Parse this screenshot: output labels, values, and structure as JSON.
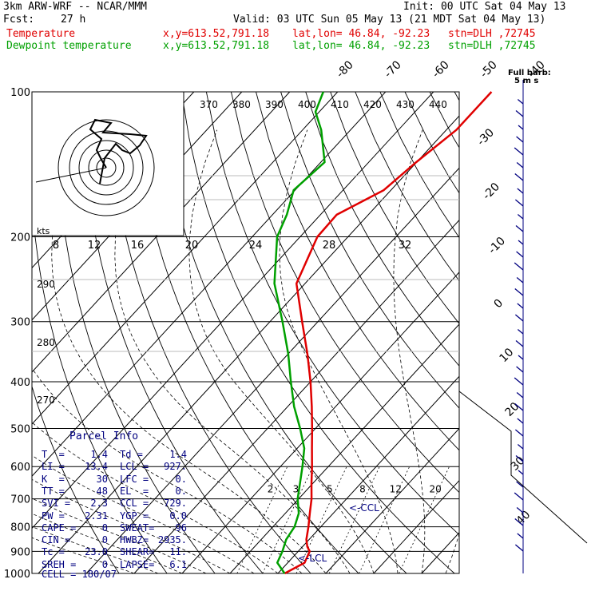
{
  "header": {
    "model": "3km ARW-WRF -- NCAR/MMM",
    "init": "Init: 00 UTC Sat 04 May 13",
    "fcst_label": "Fcst:",
    "fcst_hours": "27 h",
    "valid": "Valid: 03 UTC Sun 05 May 13 (21 MDT Sat 04 May 13)",
    "temp_line": {
      "name": "Temperature",
      "xy": "x,y=613.52,791.18",
      "latlon": "lat,lon= 46.84, -92.23",
      "stn": "stn=DLH ,72745"
    },
    "dew_line": {
      "name": "Dewpoint temperature",
      "xy": "x,y=613.52,791.18",
      "latlon": "lat,lon= 46.84, -92.23",
      "stn": "stn=DLH ,72745"
    }
  },
  "barb_legend": {
    "line1": "Full barb:",
    "line2": "5 m s"
  },
  "hodo_kts_label": "kts",
  "parcel": {
    "title": "Parcel Info",
    "rows": [
      [
        "T  =",
        "1.4",
        "Td =",
        "1.4"
      ],
      [
        "LI =",
        "13.4",
        "LCL =",
        "927."
      ],
      [
        "K  =",
        "30",
        "LFC =",
        "0."
      ],
      [
        "TT =",
        "48",
        "EL  =",
        "0."
      ],
      [
        "SVI =",
        "2.3",
        "CCL =",
        "729."
      ],
      [
        "PW =",
        "2.31",
        "YGP =",
        "0.0"
      ],
      [
        "CAPE =",
        "0",
        "SWEAT=",
        "96"
      ],
      [
        "CIN =",
        "0",
        "HWBZ=",
        "2935."
      ],
      [
        "Tc =",
        "23.0",
        "SHEAR=",
        "11."
      ],
      [
        "SREH =",
        "0",
        "LAPSE=",
        "6.1"
      ]
    ],
    "cell": "CELL = 180/07"
  },
  "levels": {
    "ccl": "<-CCL",
    "lcl": "<-LCL"
  },
  "chart_data": {
    "type": "line",
    "title": "",
    "xlabel": "",
    "ylabel": "",
    "y_axis": "pressure (hPa), log scale",
    "ylim": [
      1000,
      100
    ],
    "pressure_ticks": [
      100,
      200,
      300,
      400,
      500,
      600,
      700,
      800,
      900,
      1000
    ],
    "isotherm_labels": [
      -80,
      -70,
      -60,
      -50,
      -40,
      -30,
      -20,
      -10,
      0,
      10,
      20,
      30,
      40
    ],
    "theta_labels": [
      370,
      380,
      390,
      400,
      410,
      420,
      430,
      440,
      290,
      280,
      270
    ],
    "mixing_ratio_labels": [
      2,
      3,
      5,
      8,
      12,
      20
    ],
    "hodograph_speed_labels": [
      8,
      12,
      16,
      20,
      24,
      28,
      32
    ],
    "series": [
      {
        "name": "Temperature",
        "color": "#e00000",
        "points": [
          [
            1000,
            1.4
          ],
          [
            950,
            3.5
          ],
          [
            900,
            2.4
          ],
          [
            880,
            1.0
          ],
          [
            850,
            -0.6
          ],
          [
            800,
            -2.6
          ],
          [
            750,
            -4.9
          ],
          [
            700,
            -7.3
          ],
          [
            650,
            -10.3
          ],
          [
            600,
            -13.4
          ],
          [
            550,
            -16.9
          ],
          [
            500,
            -20.7
          ],
          [
            450,
            -25.0
          ],
          [
            400,
            -30.0
          ],
          [
            350,
            -36.0
          ],
          [
            300,
            -43.3
          ],
          [
            250,
            -51.8
          ],
          [
            200,
            -56.4
          ],
          [
            180,
            -56.6
          ],
          [
            160,
            -51.5
          ],
          [
            140,
            -50.1
          ],
          [
            120,
            -47.9
          ],
          [
            100,
            -47.9
          ]
        ]
      },
      {
        "name": "Dewpoint temperature",
        "color": "#00a000",
        "points": [
          [
            1000,
            1.4
          ],
          [
            950,
            -2.2
          ],
          [
            900,
            -3.3
          ],
          [
            850,
            -4.8
          ],
          [
            800,
            -5.5
          ],
          [
            750,
            -7.2
          ],
          [
            700,
            -10.2
          ],
          [
            650,
            -12.7
          ],
          [
            600,
            -15.4
          ],
          [
            550,
            -18.5
          ],
          [
            500,
            -23.2
          ],
          [
            450,
            -28.7
          ],
          [
            400,
            -34.1
          ],
          [
            350,
            -40.0
          ],
          [
            300,
            -47.4
          ],
          [
            250,
            -56.4
          ],
          [
            200,
            -64.8
          ],
          [
            180,
            -67.0
          ],
          [
            160,
            -70.3
          ],
          [
            140,
            -69.2
          ],
          [
            120,
            -76.1
          ],
          [
            110,
            -80.8
          ],
          [
            100,
            -83.0
          ]
        ]
      }
    ]
  }
}
